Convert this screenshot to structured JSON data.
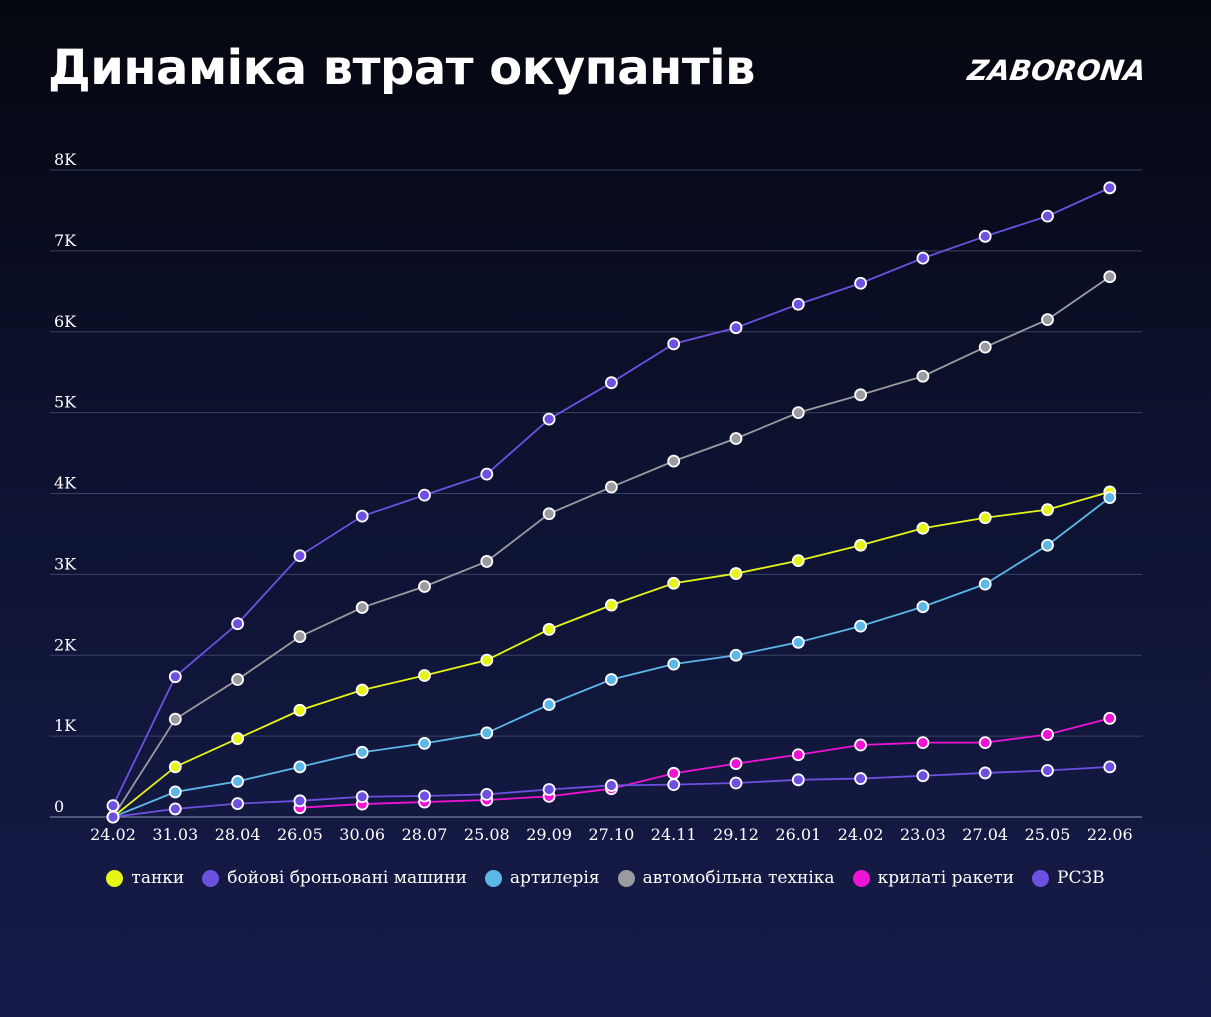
{
  "header": {
    "title": "Динаміка втрат окупантів",
    "logo": "ZABORONA"
  },
  "chart_data": {
    "type": "line",
    "title": "Динаміка втрат окупантів",
    "xlabel": "",
    "ylabel": "",
    "x": [
      "24.02",
      "31.03",
      "28.04",
      "26.05",
      "30.06",
      "28.07",
      "25.08",
      "29.09",
      "27.10",
      "24.11",
      "29.12",
      "26.01",
      "24.02",
      "23.03",
      "27.04",
      "25.05",
      "22.06"
    ],
    "y_ticks": [
      "0",
      "1K",
      "2K",
      "3K",
      "4K",
      "5K",
      "6K",
      "7K",
      "8K"
    ],
    "ylim": [
      0,
      8000
    ],
    "grid": true,
    "legend_position": "bottom",
    "series": [
      {
        "name": "танки",
        "color": "#e6f516",
        "values": [
          0,
          620,
          970,
          1320,
          1570,
          1750,
          1940,
          2320,
          2620,
          2890,
          3010,
          3170,
          3360,
          3570,
          3700,
          3800,
          4020
        ]
      },
      {
        "name": "бойові броньовані машини",
        "color": "#6e50e0",
        "values": [
          140,
          1735,
          2390,
          3230,
          3720,
          3980,
          4240,
          4920,
          5370,
          5850,
          6050,
          6340,
          6600,
          6910,
          7180,
          7430,
          7780
        ]
      },
      {
        "name": "артилерія",
        "color": "#5cb8e8",
        "values": [
          0,
          310,
          440,
          620,
          800,
          910,
          1040,
          1390,
          1700,
          1890,
          2000,
          2160,
          2360,
          2600,
          2880,
          3360,
          3950
        ]
      },
      {
        "name": "автомобільна техніка",
        "color": "#9a9aa0",
        "values": [
          0,
          1210,
          1700,
          2230,
          2590,
          2850,
          3160,
          3750,
          4080,
          4400,
          4680,
          5000,
          5220,
          5450,
          5810,
          6150,
          6680
        ]
      },
      {
        "name": "крилаті ракети",
        "color": "#f013d6",
        "values": [
          null,
          null,
          null,
          115,
          160,
          185,
          210,
          255,
          350,
          540,
          660,
          770,
          890,
          920,
          920,
          1020,
          1220
        ]
      },
      {
        "name": "РСЗВ",
        "color": "#6e50e0",
        "values": [
          0,
          100,
          165,
          200,
          250,
          260,
          280,
          340,
          390,
          400,
          420,
          460,
          475,
          510,
          545,
          575,
          620
        ]
      }
    ]
  }
}
